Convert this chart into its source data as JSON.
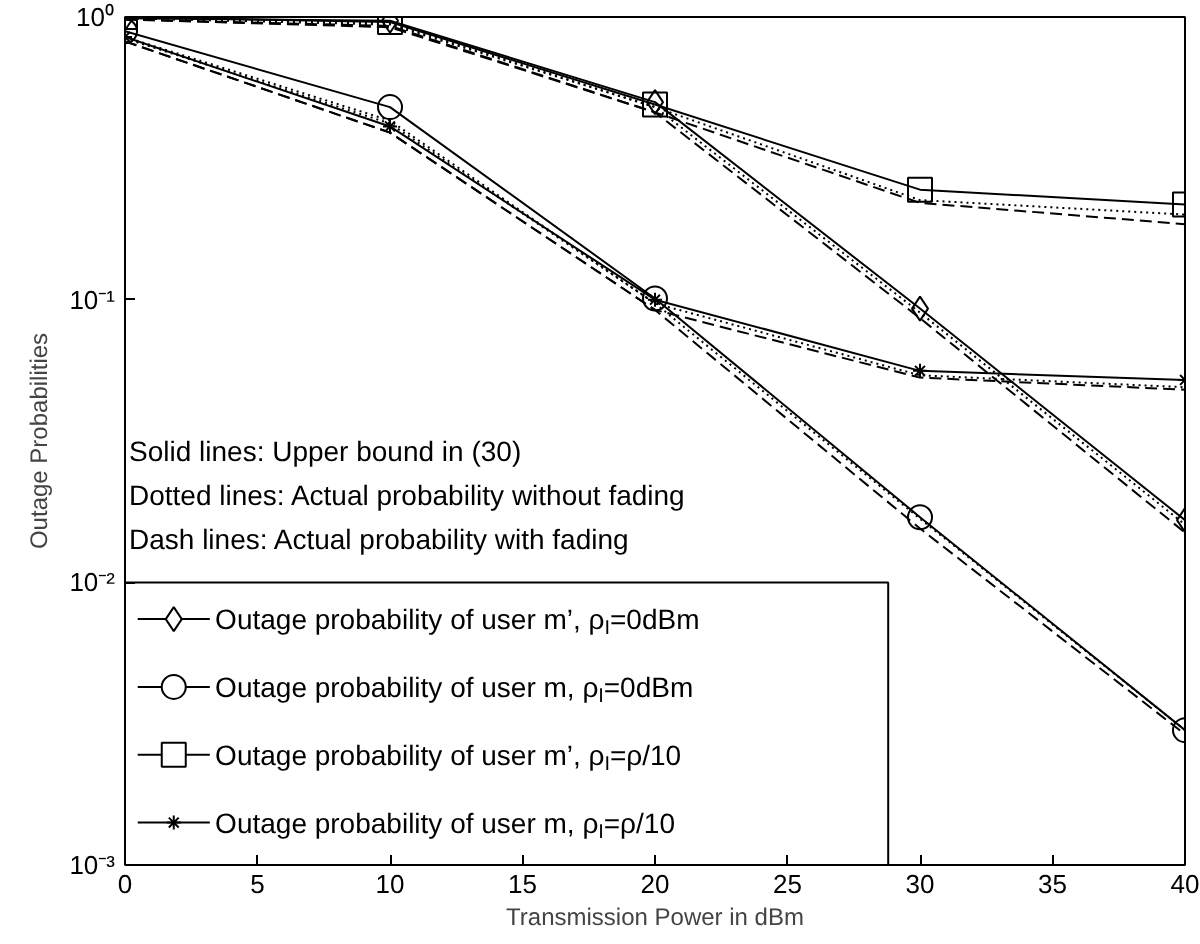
{
  "chart_data": {
    "type": "line",
    "xlabel": "Transmission Power in dBm",
    "ylabel": "Outage Probabilities",
    "log": "y",
    "grid": false,
    "legend": "bottom left",
    "x": [
      0,
      10,
      20,
      30,
      40
    ],
    "xlim": [
      0,
      40
    ],
    "xticks": [
      0,
      5,
      10,
      15,
      20,
      25,
      30,
      35,
      40
    ],
    "ylim": [
      0.001,
      1
    ],
    "yticks": [
      {
        "value": 1,
        "label": "10⁰"
      },
      {
        "value": 0.1,
        "label": "10⁻¹"
      },
      {
        "value": 0.01,
        "label": "10⁻²"
      },
      {
        "value": 0.001,
        "label": "10⁻³"
      }
    ],
    "annotations": [
      "Solid lines: Upper bound in (30)",
      "Dotted lines: Actual probability without fading",
      "Dash lines: Actual probability with fading"
    ],
    "series": [
      {
        "name": "Outage probability of user m’, ρ$_{I}$=0dBm",
        "color": "#000000",
        "marker": "diamond",
        "line_style": "solid",
        "values": [
          0.99,
          0.97,
          0.5,
          0.093,
          0.0166
        ]
      },
      {
        "name": "Outage probability of user m, ρ$_{I}$=0dBm",
        "color": "#000000",
        "marker": "circle",
        "line_style": "solid",
        "values": [
          0.89,
          0.48,
          0.101,
          0.017,
          0.003
        ]
      },
      {
        "name": "Outage probability of user m’, ρ$_{I}$=ρ/10",
        "color": "#000000",
        "marker": "square",
        "line_style": "solid",
        "values": [
          1.0,
          0.96,
          0.49,
          0.245,
          0.217
        ]
      },
      {
        "name": "Outage probability of user m, ρ$_{I}$=ρ/10",
        "color": "#000000",
        "marker": "cross",
        "line_style": "solid",
        "values": [
          0.85,
          0.41,
          0.1,
          0.056,
          0.052
        ]
      },
      {
        "color": "#000000",
        "marker": "none",
        "line_style": "dotted",
        "values": [
          0.99,
          0.95,
          0.48,
          0.09,
          0.016
        ]
      },
      {
        "color": "#000000",
        "marker": "none",
        "line_style": "dashed",
        "values": [
          0.98,
          0.93,
          0.46,
          0.086,
          0.015
        ]
      },
      {
        "color": "#000000",
        "marker": "none",
        "line_style": "dotted",
        "values": [
          0.85,
          0.43,
          0.097,
          0.0168,
          0.003
        ]
      },
      {
        "color": "#000000",
        "marker": "none",
        "line_style": "dashed",
        "values": [
          0.82,
          0.39,
          0.092,
          0.0155,
          0.0029
        ]
      },
      {
        "color": "#000000",
        "marker": "none",
        "line_style": "dotted",
        "values": [
          0.99,
          0.94,
          0.48,
          0.225,
          0.2
        ]
      },
      {
        "color": "#000000",
        "marker": "none",
        "line_style": "dashed",
        "values": [
          0.98,
          0.92,
          0.46,
          0.22,
          0.185
        ]
      },
      {
        "color": "#000000",
        "marker": "none",
        "line_style": "dotted",
        "values": [
          0.84,
          0.42,
          0.097,
          0.054,
          0.049
        ]
      },
      {
        "color": "#000000",
        "marker": "none",
        "line_style": "dashed",
        "values": [
          0.82,
          0.39,
          0.092,
          0.053,
          0.048
        ]
      }
    ]
  }
}
